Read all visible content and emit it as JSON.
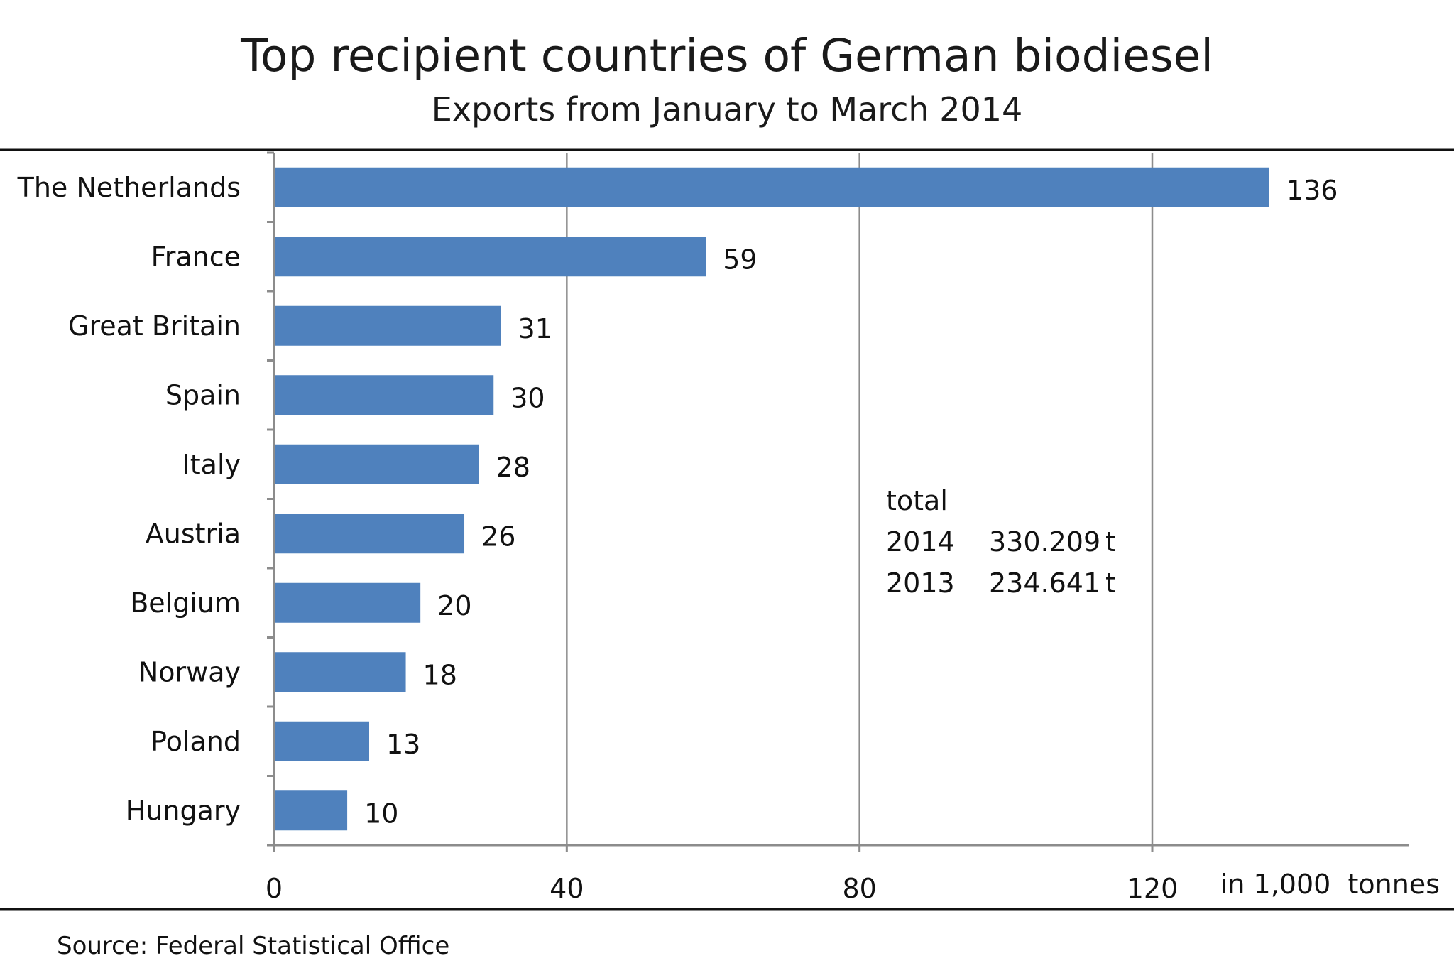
{
  "chart_data": {
    "type": "bar",
    "orientation": "horizontal",
    "title": "Top recipient countries of German biodiesel",
    "subtitle": "Exports from January to March 2014",
    "categories": [
      "The Netherlands",
      "France",
      "Great Britain",
      "Spain",
      "Italy",
      "Austria",
      "Belgium",
      "Norway",
      "Poland",
      "Hungary"
    ],
    "values": [
      136,
      59,
      31,
      30,
      28,
      26,
      20,
      18,
      13,
      10
    ],
    "value_labels": [
      "136",
      "59",
      "31",
      "30",
      "28",
      "26",
      "20",
      "18",
      "13",
      "10"
    ],
    "xlim": [
      0,
      155
    ],
    "xticks": [
      0,
      40,
      80,
      120
    ],
    "xtick_labels": [
      "0",
      "40",
      "80",
      "120"
    ],
    "xlabel": "in 1,000  tonnes",
    "grid": "vertical",
    "bar_color": "#4f81bd",
    "grid_color": "#8c8c8c",
    "annotation": {
      "heading": "total",
      "rows": [
        {
          "year": "2014",
          "amount": "330.209",
          "unit": "t"
        },
        {
          "year": "2013",
          "amount": "234.641",
          "unit": "t"
        }
      ]
    },
    "source": "Source: Federal Statistical Office"
  }
}
